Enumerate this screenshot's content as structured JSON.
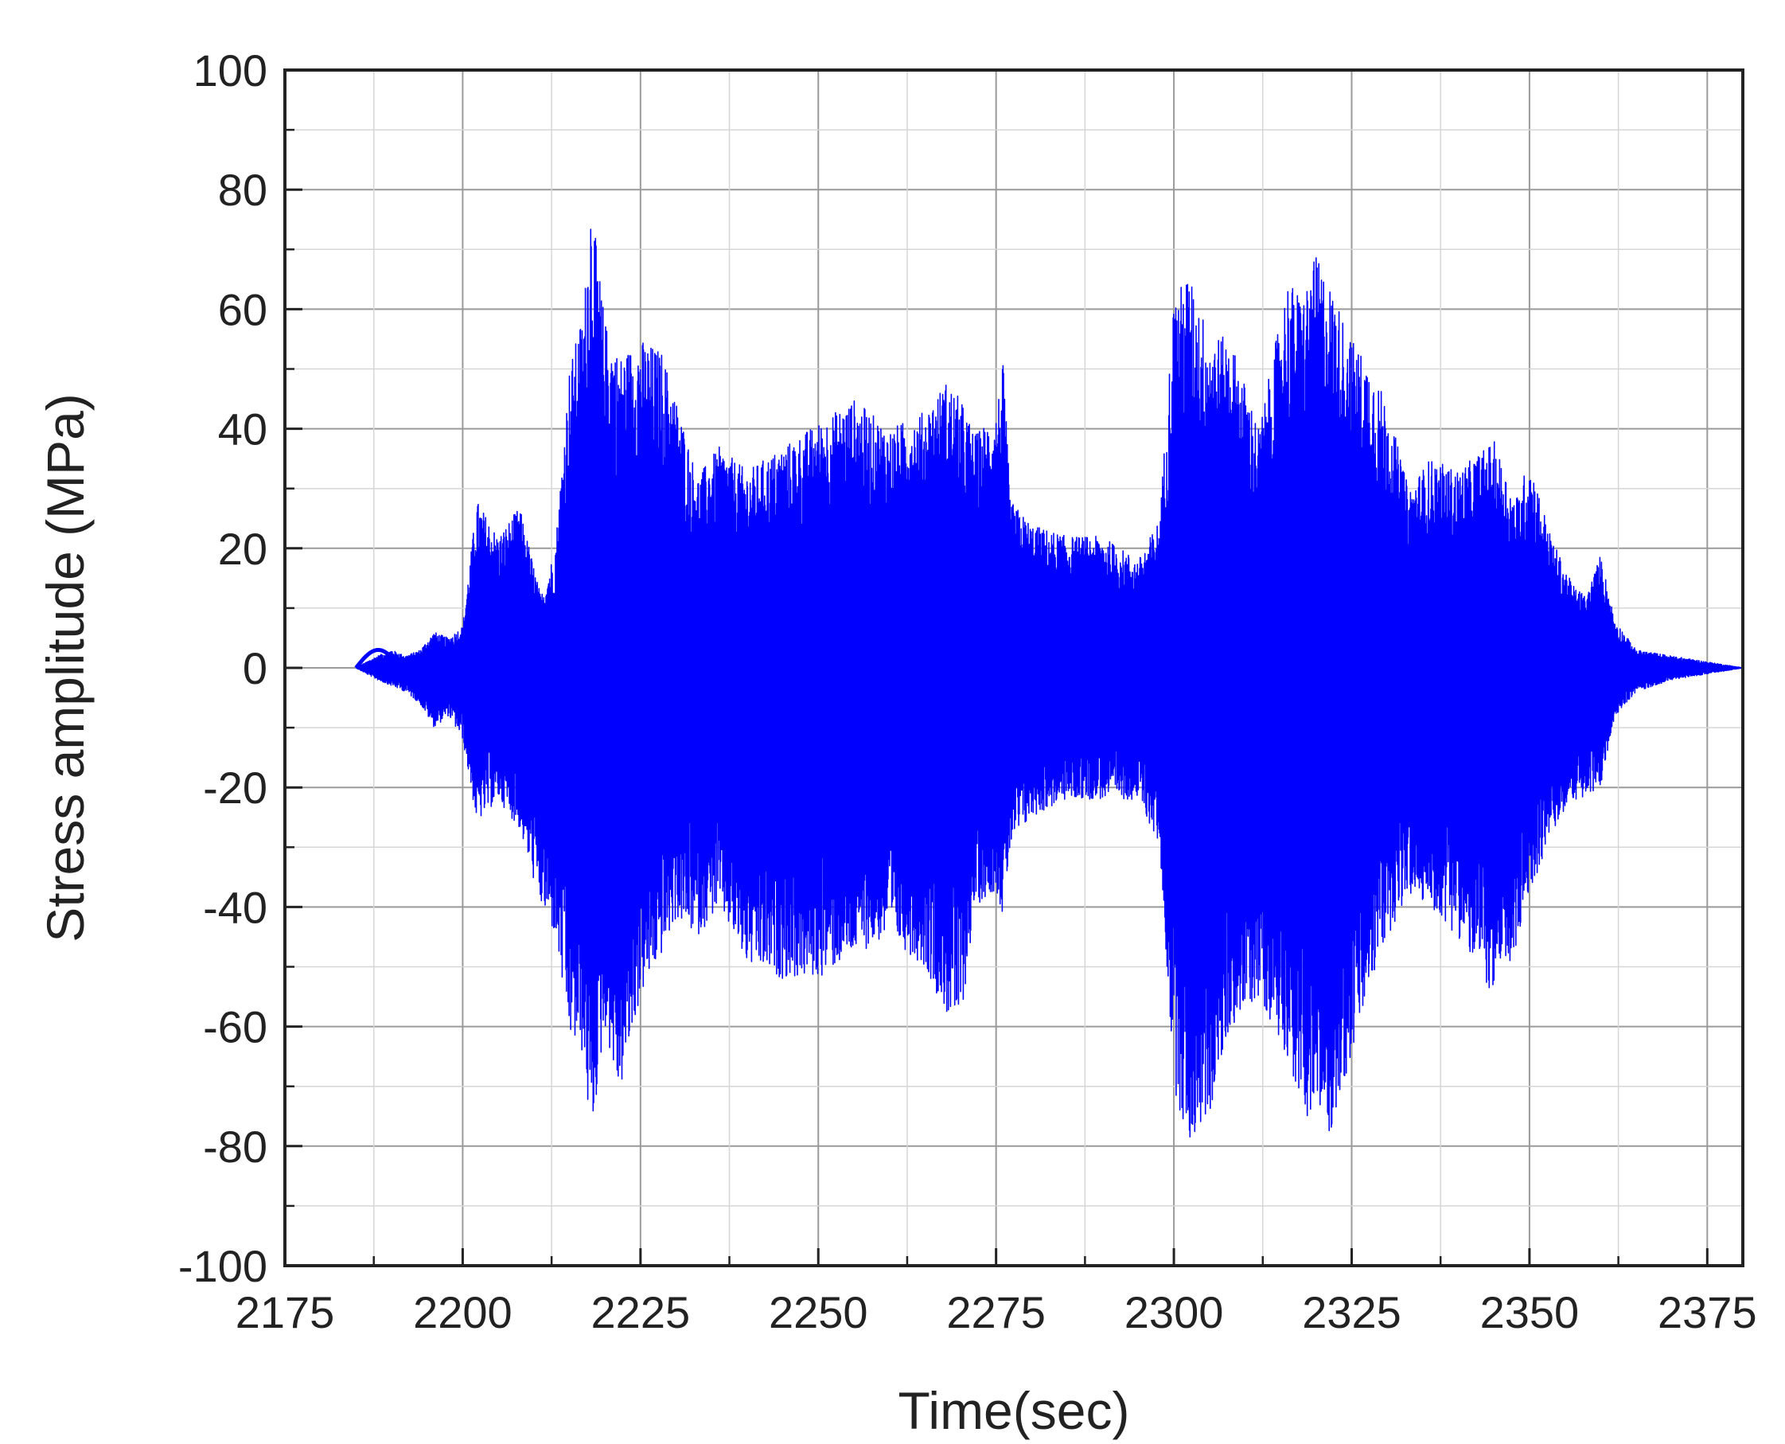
{
  "chart_data": {
    "type": "line",
    "title": "",
    "xlabel": "Time(sec)",
    "ylabel": "Stress amplitude (MPa)",
    "xlim": [
      2175,
      2380
    ],
    "ylim": [
      -100,
      100
    ],
    "x_ticks": [
      2175,
      2200,
      2225,
      2250,
      2275,
      2300,
      2325,
      2350,
      2375
    ],
    "y_ticks": [
      -100,
      -80,
      -60,
      -40,
      -20,
      0,
      20,
      40,
      60,
      80,
      100
    ],
    "grid": true,
    "legend": "none",
    "series": [
      {
        "color": "#0000ff",
        "description": "dense oscillating stress signal",
        "envelope_upper": {
          "x": [
            2185,
            2188,
            2190,
            2192,
            2194,
            2196,
            2198,
            2200,
            2202,
            2205,
            2208,
            2211,
            2213,
            2215,
            2217,
            2218,
            2220,
            2222,
            2225,
            2228,
            2230,
            2233,
            2236,
            2240,
            2245,
            2250,
            2255,
            2260,
            2265,
            2268,
            2270,
            2272,
            2275,
            2276,
            2277,
            2280,
            2285,
            2290,
            2295,
            2298,
            2300,
            2302,
            2305,
            2308,
            2312,
            2316,
            2318,
            2320,
            2322,
            2325,
            2328,
            2330,
            2333,
            2336,
            2340,
            2345,
            2348,
            2350,
            2353,
            2356,
            2358,
            2360,
            2362,
            2365,
            2370,
            2375,
            2380
          ],
          "y": [
            0,
            2,
            3,
            2,
            3,
            6,
            5,
            7,
            28,
            22,
            27,
            12,
            20,
            50,
            60,
            79,
            58,
            52,
            55,
            53,
            45,
            32,
            37,
            33,
            37,
            41,
            45,
            40,
            43,
            48,
            45,
            39,
            43,
            51,
            28,
            24,
            22,
            22,
            18,
            25,
            62,
            66,
            56,
            55,
            40,
            65,
            62,
            69,
            64,
            55,
            50,
            44,
            30,
            35,
            33,
            38,
            28,
            35,
            22,
            14,
            12,
            19,
            8,
            3,
            2,
            1,
            0
          ]
        },
        "envelope_lower": {
          "x": [
            2185,
            2188,
            2190,
            2192,
            2194,
            2196,
            2198,
            2200,
            2202,
            2205,
            2208,
            2211,
            2213,
            2215,
            2217,
            2218,
            2220,
            2222,
            2225,
            2228,
            2230,
            2233,
            2236,
            2240,
            2245,
            2250,
            2255,
            2260,
            2265,
            2268,
            2270,
            2272,
            2275,
            2276,
            2277,
            2280,
            2285,
            2290,
            2295,
            2298,
            2300,
            2302,
            2305,
            2308,
            2312,
            2316,
            2318,
            2320,
            2322,
            2325,
            2328,
            2330,
            2333,
            2336,
            2340,
            2345,
            2348,
            2350,
            2353,
            2356,
            2358,
            2360,
            2362,
            2365,
            2370,
            2375,
            2380
          ],
          "y": [
            0,
            -2,
            -3,
            -4,
            -6,
            -10,
            -8,
            -12,
            -26,
            -22,
            -27,
            -40,
            -45,
            -62,
            -65,
            -80,
            -60,
            -72,
            -55,
            -48,
            -42,
            -45,
            -40,
            -50,
            -52,
            -52,
            -48,
            -45,
            -50,
            -58,
            -60,
            -40,
            -37,
            -42,
            -30,
            -25,
            -22,
            -22,
            -22,
            -30,
            -70,
            -80,
            -75,
            -60,
            -55,
            -65,
            -75,
            -75,
            -78,
            -65,
            -52,
            -45,
            -38,
            -40,
            -45,
            -55,
            -48,
            -38,
            -28,
            -22,
            -22,
            -20,
            -8,
            -4,
            -2,
            -1,
            0
          ]
        }
      }
    ]
  }
}
